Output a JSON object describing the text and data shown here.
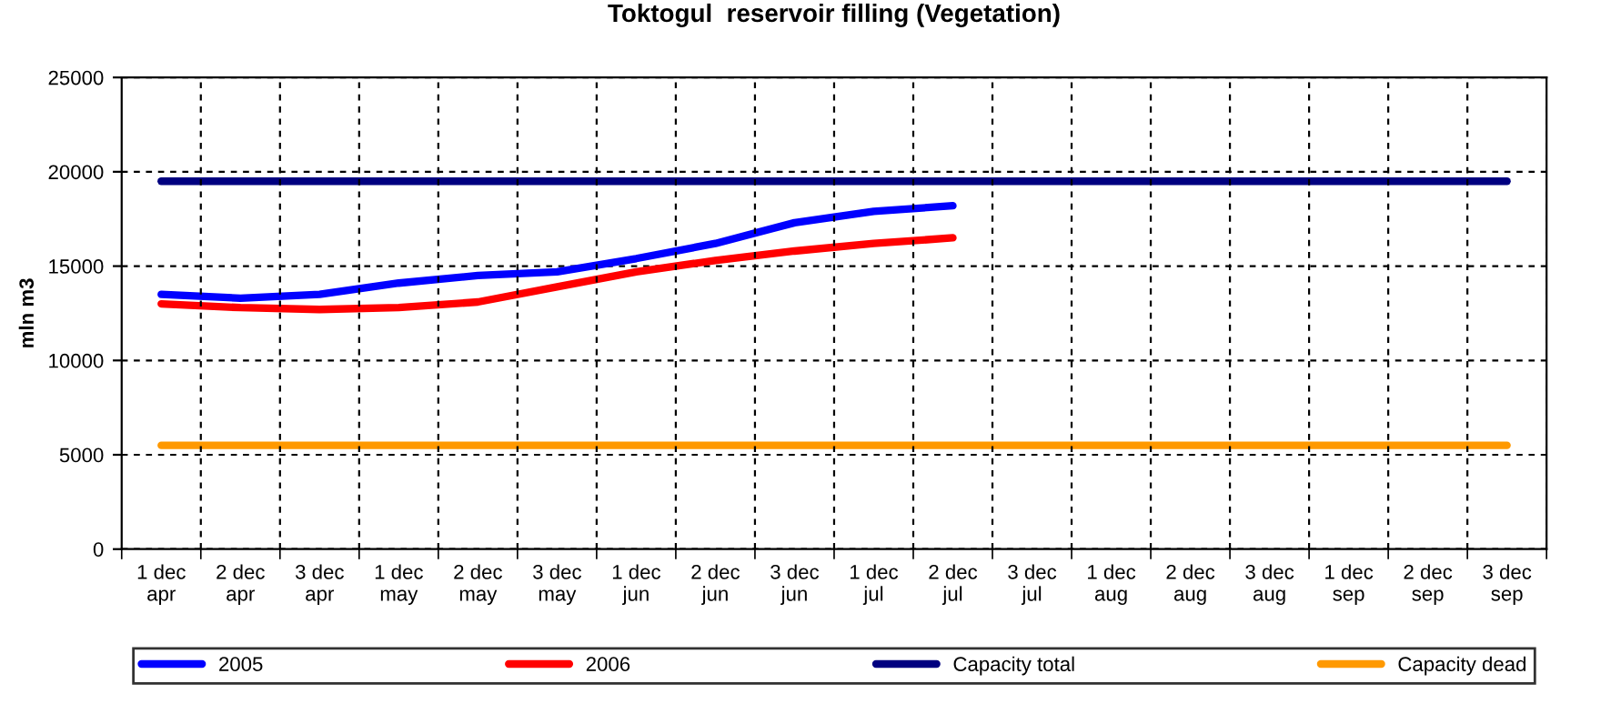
{
  "chart_data": {
    "type": "line",
    "title": "Toktogul  reservoir filling (Vegetation)",
    "ylabel": "mln m3",
    "categories": [
      "1 dec\napr",
      "2 dec\napr",
      "3 dec\napr",
      "1 dec\nmay",
      "2 dec\nmay",
      "3 dec\nmay",
      "1 dec\njun",
      "2 dec\njun",
      "3 dec\njun",
      "1 dec\njul",
      "2 dec\njul",
      "3 dec\njul",
      "1 dec\naug",
      "2 dec\naug",
      "3 dec\naug",
      "1 dec\nsep",
      "2 dec\nsep",
      "3 dec\nsep"
    ],
    "series": [
      {
        "name": "2005",
        "color": "#0000ff",
        "values": [
          13500,
          13300,
          13500,
          14100,
          14500,
          14700,
          15400,
          16200,
          17300,
          17900,
          18200,
          null,
          null,
          null,
          null,
          null,
          null,
          null
        ]
      },
      {
        "name": "2006",
        "color": "#ff0000",
        "values": [
          13000,
          12800,
          12700,
          12800,
          13100,
          13900,
          14700,
          15300,
          15800,
          16200,
          16500,
          null,
          null,
          null,
          null,
          null,
          null,
          null
        ]
      },
      {
        "name": "Capacity total",
        "color": "#000080",
        "values": [
          19500,
          19500,
          19500,
          19500,
          19500,
          19500,
          19500,
          19500,
          19500,
          19500,
          19500,
          19500,
          19500,
          19500,
          19500,
          19500,
          19500,
          19500
        ]
      },
      {
        "name": "Capacity dead",
        "color": "#ff9900",
        "values": [
          5500,
          5500,
          5500,
          5500,
          5500,
          5500,
          5500,
          5500,
          5500,
          5500,
          5500,
          5500,
          5500,
          5500,
          5500,
          5500,
          5500,
          5500
        ]
      }
    ],
    "ylim": [
      0,
      25000
    ],
    "yticks": [
      0,
      5000,
      10000,
      15000,
      20000,
      25000
    ],
    "grid": true,
    "legend": "bottom",
    "marker": "none",
    "line_style": "solid"
  }
}
